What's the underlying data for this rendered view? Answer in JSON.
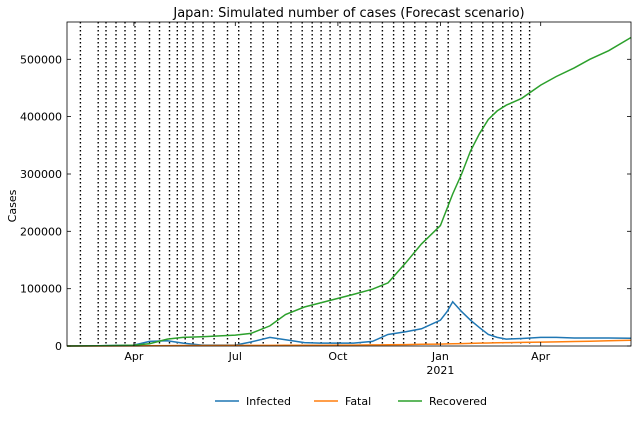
{
  "chart_data": {
    "type": "line",
    "title": "Japan: Simulated number of cases (Forecast scenario)",
    "xlabel": "",
    "ylabel": "Cases",
    "x_range": [
      "2020-02-01",
      "2021-06-21"
    ],
    "ylim": [
      0,
      565000
    ],
    "yticks": [
      0,
      100000,
      200000,
      300000,
      400000,
      500000
    ],
    "xticks": [
      {
        "date": "2020-04-01",
        "label": "Apr",
        "sublabel": ""
      },
      {
        "date": "2020-07-01",
        "label": "Jul",
        "sublabel": ""
      },
      {
        "date": "2020-10-01",
        "label": "Oct",
        "sublabel": ""
      },
      {
        "date": "2021-01-01",
        "label": "Jan",
        "sublabel": "2021"
      },
      {
        "date": "2021-04-01",
        "label": "Apr",
        "sublabel": ""
      }
    ],
    "phase_change_dates": [
      "2020-02-13",
      "2020-02-29",
      "2020-03-07",
      "2020-03-16",
      "2020-03-24",
      "2020-04-02",
      "2020-04-15",
      "2020-04-24",
      "2020-05-03",
      "2020-05-10",
      "2020-05-17",
      "2020-05-24",
      "2020-06-02",
      "2020-06-12",
      "2020-06-24",
      "2020-07-04",
      "2020-07-15",
      "2020-07-26",
      "2020-08-08",
      "2020-08-20",
      "2020-08-30",
      "2020-09-08",
      "2020-09-16",
      "2020-09-24",
      "2020-10-03",
      "2020-10-12",
      "2020-10-21",
      "2020-10-30",
      "2020-11-10",
      "2020-11-20",
      "2020-11-29",
      "2020-12-09",
      "2020-12-19",
      "2020-12-29",
      "2021-01-08",
      "2021-01-19",
      "2021-01-29",
      "2021-02-08",
      "2021-02-17",
      "2021-02-26",
      "2021-03-06",
      "2021-03-14",
      "2021-03-22"
    ],
    "x": [
      "2020-02-01",
      "2020-03-01",
      "2020-04-01",
      "2020-04-15",
      "2020-05-01",
      "2020-05-15",
      "2020-06-01",
      "2020-07-01",
      "2020-07-15",
      "2020-08-01",
      "2020-08-15",
      "2020-09-01",
      "2020-09-15",
      "2020-10-01",
      "2020-10-15",
      "2020-11-01",
      "2020-11-15",
      "2020-12-01",
      "2020-12-15",
      "2021-01-01",
      "2021-01-07",
      "2021-01-12",
      "2021-01-20",
      "2021-01-28",
      "2021-02-05",
      "2021-02-13",
      "2021-02-21",
      "2021-03-01",
      "2021-03-15",
      "2021-04-01",
      "2021-04-15",
      "2021-05-01",
      "2021-05-15",
      "2021-06-01",
      "2021-06-21"
    ],
    "series": [
      {
        "name": "Infected",
        "color": "#1f77b4",
        "values": [
          0,
          400,
          1500,
          8000,
          9000,
          5000,
          1500,
          1500,
          7000,
          15000,
          11000,
          6000,
          5000,
          5000,
          5000,
          8000,
          20000,
          25000,
          30000,
          45000,
          60000,
          77000,
          60000,
          45000,
          32000,
          20000,
          15000,
          12000,
          13000,
          15000,
          15000,
          14000,
          14000,
          14000,
          13500
        ]
      },
      {
        "name": "Fatal",
        "color": "#ff7f0e",
        "values": [
          0,
          50,
          100,
          500,
          700,
          900,
          950,
          1000,
          1050,
          1100,
          1200,
          1300,
          1450,
          1550,
          1650,
          1850,
          2100,
          2500,
          3000,
          3400,
          3600,
          3800,
          4200,
          4600,
          5000,
          5300,
          5600,
          5900,
          6200,
          6800,
          7200,
          7800,
          8400,
          9200,
          10000
        ]
      },
      {
        "name": "Recovered",
        "color": "#2ca02c",
        "values": [
          0,
          300,
          1500,
          4000,
          12000,
          15000,
          16000,
          19000,
          22000,
          35000,
          55000,
          68000,
          75000,
          83000,
          90000,
          99000,
          110000,
          145000,
          178000,
          210000,
          240000,
          265000,
          300000,
          340000,
          370000,
          395000,
          410000,
          420000,
          432000,
          455000,
          470000,
          485000,
          500000,
          515000,
          538000
        ]
      }
    ],
    "legend_position": "bottom-center",
    "grid": false
  }
}
